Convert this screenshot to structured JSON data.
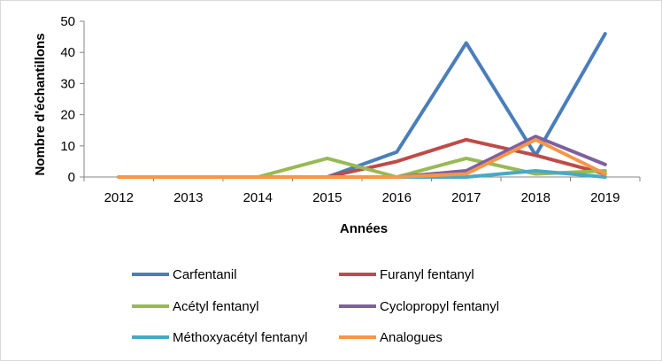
{
  "chart_data": {
    "type": "line",
    "title": "",
    "xlabel": "Années",
    "ylabel": "Nombre d'échantillons",
    "categories": [
      "2012",
      "2013",
      "2014",
      "2015",
      "2016",
      "2017",
      "2018",
      "2019"
    ],
    "ylim": [
      0,
      50
    ],
    "yticks": [
      "0",
      "10",
      "20",
      "30",
      "40",
      "50"
    ],
    "grid": false,
    "legend_position": "bottom",
    "series": [
      {
        "name": "Carfentanil",
        "color": "#4a7ebb",
        "values": [
          0,
          0,
          0,
          0,
          8,
          43,
          7,
          46
        ]
      },
      {
        "name": "Furanyl fentanyl",
        "color": "#be4b48",
        "values": [
          0,
          0,
          0,
          0,
          5,
          12,
          7,
          1
        ]
      },
      {
        "name": "Acétyl fentanyl",
        "color": "#98b954",
        "values": [
          0,
          0,
          0,
          6,
          0,
          6,
          1,
          2
        ]
      },
      {
        "name": "Cyclopropyl fentanyl",
        "color": "#7d60a0",
        "values": [
          0,
          0,
          0,
          0,
          0,
          2,
          13,
          4
        ]
      },
      {
        "name": "Méthoxyacétyl fentanyl",
        "color": "#46aac5",
        "values": [
          0,
          0,
          0,
          0,
          0,
          0,
          2,
          0
        ]
      },
      {
        "name": "Analogues",
        "color": "#f79646",
        "values": [
          0,
          0,
          0,
          0,
          0,
          1,
          12,
          1
        ]
      }
    ]
  }
}
